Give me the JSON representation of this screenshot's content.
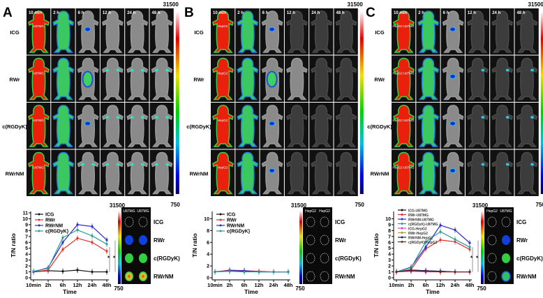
{
  "panels": [
    {
      "letter": "A",
      "time_labels": [
        "10 min",
        "2 h",
        "6 h",
        "12 h",
        "24 h",
        "48 h"
      ],
      "row_labels": [
        "ICG",
        "RWr",
        "c(RGDyK)",
        "RWrNM"
      ],
      "tumor_label": "U87MG",
      "colorbar": {
        "max": "31500",
        "min": "750"
      },
      "cells": [
        [
          "red",
          "green",
          "gray:center",
          "gray",
          "gray",
          "gray"
        ],
        [
          "red",
          "green",
          "gray:large",
          "gray:shoulders",
          "gray:shoulders",
          "gray:shoulders"
        ],
        [
          "red",
          "green",
          "gray:center",
          "gray:shoulders",
          "gray:shoulders",
          "gray:shoulders"
        ],
        [
          "red",
          "green",
          "gray:shoulders",
          "gray:shoulders",
          "gray:shoulders",
          "gray:shoulders"
        ]
      ],
      "exvivo": {
        "headers": [
          "U87MG",
          "U87MG"
        ],
        "row_labels": [
          "ICG",
          "RWr",
          "c(RGDyK)",
          "RWrNM"
        ],
        "organs": [
          [
            "outline",
            "outline"
          ],
          [
            "blue",
            "blue"
          ],
          [
            "green",
            "green"
          ],
          [
            "hot",
            "hot"
          ]
        ]
      },
      "significance": [
        "*",
        "*"
      ]
    },
    {
      "letter": "B",
      "time_labels": [
        "10 min",
        "2 h",
        "6 h",
        "12 h",
        "24 h",
        "48 h"
      ],
      "row_labels": [
        "ICG",
        "RWr",
        "c(RGDyK)",
        "RWrNM"
      ],
      "tumor_label": "HepG2",
      "colorbar": {
        "max": "31500",
        "min": "750"
      },
      "cells": [
        [
          "red",
          "green",
          "gray:center",
          "dark",
          "dark",
          "dark"
        ],
        [
          "red",
          "green",
          "gray:large",
          "gray",
          "dark",
          "dark"
        ],
        [
          "red",
          "green",
          "gray:center",
          "dark",
          "dark",
          "dark"
        ],
        [
          "red",
          "green",
          "gray:center",
          "dark",
          "dark",
          "dark"
        ]
      ],
      "exvivo": {
        "headers": [
          "HepG2",
          "HepG2"
        ],
        "row_labels": [
          "ICG",
          "RWr",
          "c(RGDyK)",
          "RWrNM"
        ],
        "organs": [
          [
            "outline",
            "outline"
          ],
          [
            "outline",
            "outline"
          ],
          [
            "outline",
            "outline"
          ],
          [
            "outline",
            "outline"
          ]
        ]
      },
      "significance": []
    },
    {
      "letter": "C",
      "time_labels": [
        "10 min",
        "2 h",
        "6 h",
        "12 h",
        "24 h",
        "48 h"
      ],
      "row_labels": [
        "ICG",
        "RWr",
        "c(RGDyK)",
        "RWrNM"
      ],
      "tumor_label": "HepG2 U87MG",
      "colorbar": {
        "max": "31500",
        "min": "750"
      },
      "cells": [
        [
          "red",
          "green",
          "gray:center",
          "dark",
          "dark",
          "dark"
        ],
        [
          "red",
          "green",
          "gray:center",
          "dark:right",
          "dark:right",
          "dark:right"
        ],
        [
          "red",
          "green",
          "gray:center",
          "dark:right",
          "dark:right",
          "dark:right"
        ],
        [
          "red",
          "green",
          "gray:center",
          "dark:right",
          "dark:right",
          "dark:right"
        ]
      ],
      "exvivo": {
        "headers": [
          "HepG2",
          "U87MG"
        ],
        "row_labels": [
          "ICG",
          "RWr",
          "c(RGDyK)",
          "RWrNM"
        ],
        "organs": [
          [
            "outline",
            "outline"
          ],
          [
            "outline",
            "blue"
          ],
          [
            "outline",
            "green"
          ],
          [
            "outline",
            "greenblue"
          ]
        ]
      },
      "significance": [
        "*",
        "*"
      ]
    }
  ],
  "chart_data": [
    {
      "type": "line",
      "xlabel": "Time",
      "ylabel": "T/N ratio",
      "categories": [
        "10min",
        "2h",
        "6h",
        "12h",
        "24h",
        "48h"
      ],
      "ylim": [
        0,
        11
      ],
      "yticks": [
        0,
        1,
        2,
        3,
        4,
        5,
        6,
        7,
        8,
        9,
        10,
        11
      ],
      "legend": "top-left",
      "series": [
        {
          "name": "ICG",
          "color": "#111111",
          "values": [
            1.0,
            1.2,
            1.1,
            1.3,
            1.0,
            1.0
          ]
        },
        {
          "name": "RWr",
          "color": "#e0302a",
          "values": [
            1.0,
            1.3,
            4.8,
            6.7,
            6.0,
            4.5
          ]
        },
        {
          "name": "RWrNM",
          "color": "#2a2ad0",
          "values": [
            1.0,
            1.7,
            6.0,
            9.0,
            8.7,
            6.4
          ]
        },
        {
          "name": "c(RGDyK)",
          "color": "#2a9a9a",
          "values": [
            1.1,
            1.6,
            6.8,
            8.1,
            7.1,
            5.7
          ]
        }
      ]
    },
    {
      "type": "line",
      "xlabel": "Time",
      "ylabel": "T/N ratio",
      "categories": [
        "10min",
        "2h",
        "6h",
        "12h",
        "24h",
        "48h"
      ],
      "ylim": [
        0,
        11
      ],
      "yticks": [
        0,
        2,
        4,
        6,
        8,
        10
      ],
      "legend": "top-left",
      "series": [
        {
          "name": "ICG",
          "color": "#111111",
          "values": [
            1.0,
            1.2,
            1.1,
            1.0,
            1.0,
            1.0
          ]
        },
        {
          "name": "RWr",
          "color": "#e0302a",
          "values": [
            1.0,
            1.3,
            1.2,
            1.1,
            1.0,
            1.0
          ]
        },
        {
          "name": "RWrNM",
          "color": "#2a2ad0",
          "values": [
            1.0,
            1.2,
            1.2,
            1.0,
            1.0,
            1.0
          ]
        },
        {
          "name": "c(RGDyK)",
          "color": "#2a9a9a",
          "values": [
            1.0,
            1.1,
            1.0,
            1.0,
            1.0,
            1.0
          ]
        }
      ]
    },
    {
      "type": "line",
      "xlabel": "Time",
      "ylabel": "T/N ratio",
      "categories": [
        "10min",
        "2h",
        "6h",
        "12h",
        "24h",
        "48h"
      ],
      "ylim": [
        0,
        10.5
      ],
      "yticks": [
        0,
        1,
        2,
        3,
        4,
        5,
        6,
        7,
        8,
        9,
        10
      ],
      "legend": "top-left",
      "series": [
        {
          "name": "ICG-U87MG",
          "color": "#111111",
          "values": [
            1.0,
            1.3,
            1.2,
            1.1,
            1.0,
            1.0
          ]
        },
        {
          "name": "RWr-U87MG",
          "color": "#e0302a",
          "values": [
            1.0,
            1.4,
            4.9,
            6.4,
            6.1,
            4.8
          ]
        },
        {
          "name": "RWrNM-U87MG",
          "color": "#2a2ad0",
          "values": [
            1.0,
            1.8,
            5.2,
            8.9,
            8.1,
            5.9
          ]
        },
        {
          "name": "c(RGDyK)-U87MG",
          "color": "#2a9a9a",
          "values": [
            1.0,
            1.7,
            6.1,
            7.8,
            6.5,
            5.2
          ]
        },
        {
          "name": "ICG-HepG2",
          "color": "#e040d0",
          "values": [
            1.0,
            1.1,
            1.0,
            1.0,
            1.0,
            1.0
          ]
        },
        {
          "name": "RWr-HepG2",
          "color": "#a0a030",
          "values": [
            1.0,
            1.2,
            1.1,
            1.0,
            1.0,
            1.0
          ]
        },
        {
          "name": "RWrNM-HepG2",
          "color": "#202070",
          "values": [
            1.0,
            1.3,
            1.2,
            1.1,
            1.0,
            1.0
          ]
        },
        {
          "name": "c(RGDyK)-HepG2",
          "color": "#802020",
          "values": [
            1.0,
            1.2,
            1.1,
            1.0,
            1.0,
            1.0
          ]
        }
      ]
    }
  ]
}
